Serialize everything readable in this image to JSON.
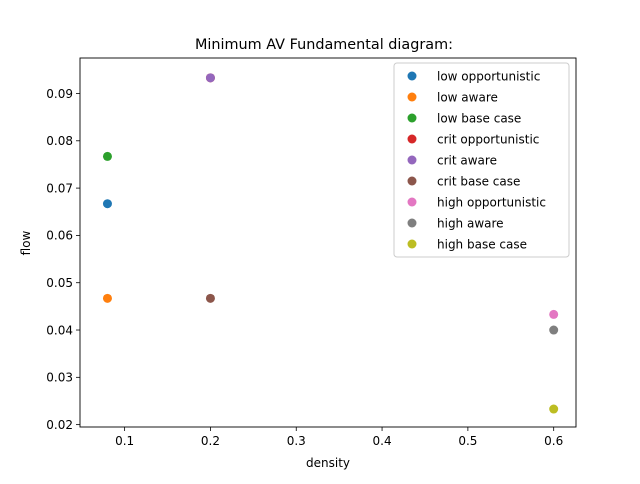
{
  "chart_data": {
    "type": "scatter",
    "title": "Minimum AV Fundamental diagram:",
    "xlabel": "density",
    "ylabel": "flow",
    "xlim": [
      0.048,
      0.626
    ],
    "ylim": [
      0.0195,
      0.0975
    ],
    "xticks": [
      0.1,
      0.2,
      0.3,
      0.4,
      0.5,
      0.6
    ],
    "xtick_labels": [
      "0.1",
      "0.2",
      "0.3",
      "0.4",
      "0.5",
      "0.6"
    ],
    "yticks": [
      0.02,
      0.03,
      0.04,
      0.05,
      0.06,
      0.07,
      0.08,
      0.09
    ],
    "ytick_labels": [
      "0.02",
      "0.03",
      "0.04",
      "0.05",
      "0.06",
      "0.07",
      "0.08",
      "0.09"
    ],
    "grid": false,
    "legend_position": "top-right",
    "series": [
      {
        "name": "low opportunistic",
        "color": "#1f77b4",
        "x": [
          0.08
        ],
        "y": [
          0.0667
        ]
      },
      {
        "name": "low aware",
        "color": "#ff7f0e",
        "x": [
          0.08
        ],
        "y": [
          0.0467
        ]
      },
      {
        "name": "low base case",
        "color": "#2ca02c",
        "x": [
          0.08
        ],
        "y": [
          0.0767
        ]
      },
      {
        "name": "crit opportunistic",
        "color": "#d62728",
        "x": [
          0.2
        ],
        "y": [
          0.0933
        ]
      },
      {
        "name": "crit aware",
        "color": "#9467bd",
        "x": [
          0.2
        ],
        "y": [
          0.0933
        ]
      },
      {
        "name": "crit base case",
        "color": "#8c564b",
        "x": [
          0.2
        ],
        "y": [
          0.0467
        ]
      },
      {
        "name": "high opportunistic",
        "color": "#e377c2",
        "x": [
          0.6
        ],
        "y": [
          0.0433
        ]
      },
      {
        "name": "high aware",
        "color": "#7f7f7f",
        "x": [
          0.6
        ],
        "y": [
          0.04
        ]
      },
      {
        "name": "high base case",
        "color": "#bcbd22",
        "x": [
          0.6
        ],
        "y": [
          0.0233
        ]
      }
    ]
  }
}
